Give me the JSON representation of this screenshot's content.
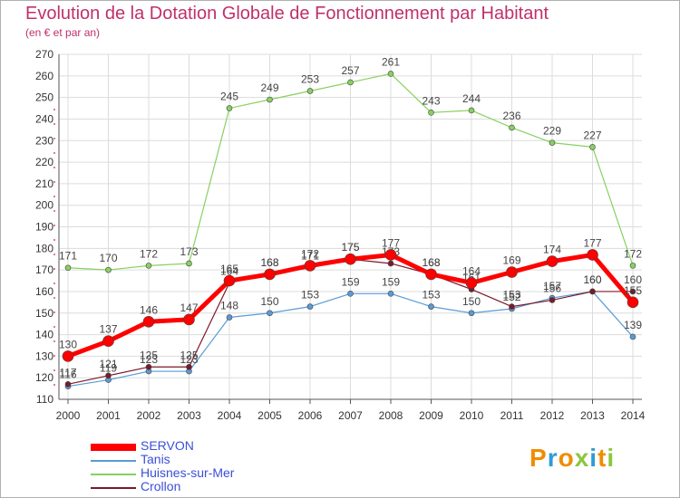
{
  "title": "Evolution de la Dotation Globale de Fonctionnement par Habitant",
  "subtitle": "(en € et par an)",
  "logo": "Proxiti",
  "chart_data": {
    "type": "line",
    "x": [
      2000,
      2001,
      2002,
      2003,
      2004,
      2005,
      2006,
      2007,
      2008,
      2009,
      2010,
      2011,
      2012,
      2013,
      2014
    ],
    "ylim": [
      110,
      270
    ],
    "yticks": [
      110,
      120,
      130,
      140,
      150,
      160,
      170,
      180,
      190,
      200,
      210,
      220,
      230,
      240,
      250,
      260,
      270
    ],
    "grid": true,
    "legend_position": "bottom-left",
    "series": [
      {
        "name": "Huisnes-sur-Mer",
        "color": "#88d060",
        "values": [
          171,
          170,
          172,
          173,
          245,
          249,
          253,
          257,
          261,
          243,
          244,
          236,
          229,
          227,
          172
        ]
      },
      {
        "name": "Tanis",
        "color": "#5b9bd5",
        "values": [
          116,
          119,
          123,
          123,
          148,
          150,
          153,
          159,
          159,
          153,
          150,
          152,
          157,
          160,
          139
        ]
      },
      {
        "name": "Crollon",
        "color": "#7a1a2a",
        "values": [
          117,
          121,
          125,
          125,
          164,
          168,
          171,
          175,
          173,
          168,
          161,
          153,
          156,
          160,
          160
        ]
      },
      {
        "name": "SERVON",
        "color": "#ff0000",
        "values": [
          130,
          137,
          146,
          147,
          165,
          168,
          172,
          175,
          177,
          168,
          164,
          169,
          174,
          177,
          155
        ]
      }
    ],
    "legend_order": [
      "SERVON",
      "Tanis",
      "Huisnes-sur-Mer",
      "Crollon"
    ]
  }
}
